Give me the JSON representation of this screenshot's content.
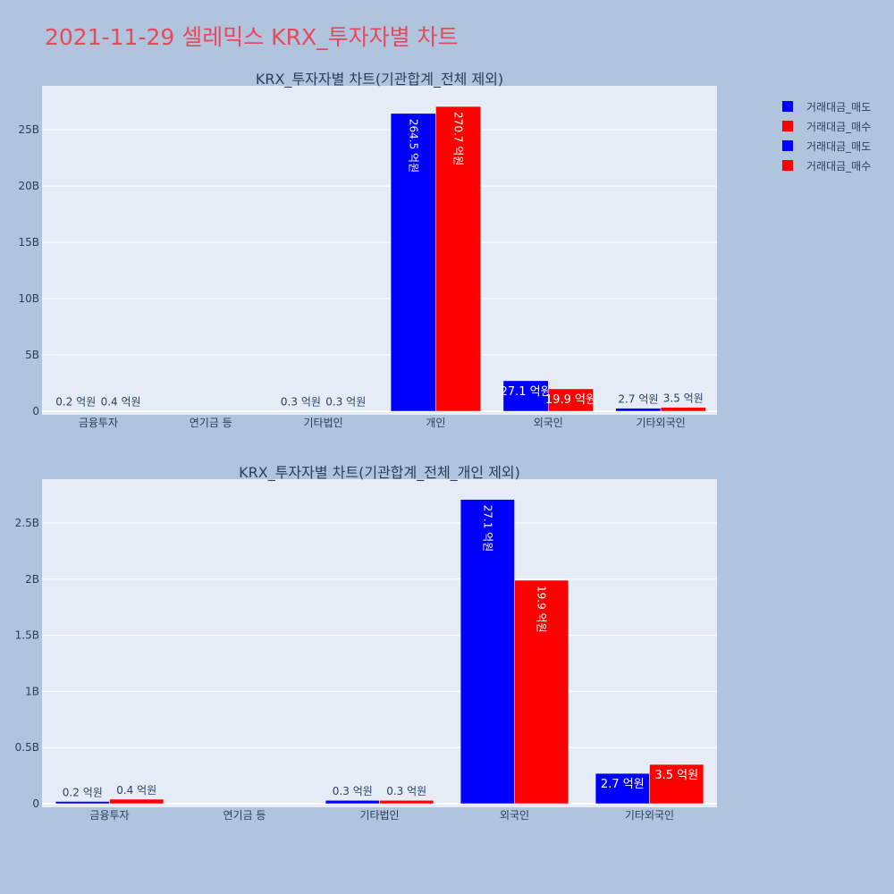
{
  "title": "2021-11-29 셀레믹스 KRX_투자자별 차트",
  "legend": [
    {
      "label": "거래대금_매도",
      "color": "#0000ff"
    },
    {
      "label": "거래대금_매수",
      "color": "#ff0000"
    },
    {
      "label": "거래대금_매도",
      "color": "#0000ff"
    },
    {
      "label": "거래대금_매수",
      "color": "#ff0000"
    }
  ],
  "chart_data": [
    {
      "type": "bar",
      "title": "KRX_투자자별 차트(기관합계_전체 제외)",
      "categories": [
        "금융투자",
        "연기금 등",
        "기타법인",
        "개인",
        "외국인",
        "기타외국인"
      ],
      "series": [
        {
          "name": "거래대금_매도",
          "color": "#0000ff",
          "values": [
            20000000,
            0,
            30000000,
            26450000000,
            2710000000,
            270000000
          ],
          "labels": [
            "0.2 억원",
            "",
            "0.3 억원",
            "264.5 억원",
            "27.1 억원",
            "2.7 억원"
          ]
        },
        {
          "name": "거래대금_매수",
          "color": "#ff0000",
          "values": [
            40000000,
            0,
            30000000,
            27070000000,
            1990000000,
            350000000
          ],
          "labels": [
            "0.4 억원",
            "",
            "0.3 억원",
            "270.7 억원",
            "19.9 억원",
            "3.5 억원"
          ]
        }
      ],
      "ylim": [
        0,
        28900000000
      ],
      "yticks": [
        {
          "v": 0,
          "label": "0"
        },
        {
          "v": 5000000000,
          "label": "5B"
        },
        {
          "v": 10000000000,
          "label": "10B"
        },
        {
          "v": 15000000000,
          "label": "15B"
        },
        {
          "v": 20000000000,
          "label": "20B"
        },
        {
          "v": 25000000000,
          "label": "25B"
        }
      ],
      "grid": true
    },
    {
      "type": "bar",
      "title": "KRX_투자자별 차트(기관합계_전체_개인 제외)",
      "categories": [
        "금융투자",
        "연기금 등",
        "기타법인",
        "외국인",
        "기타외국인"
      ],
      "series": [
        {
          "name": "거래대금_매도",
          "color": "#0000ff",
          "values": [
            20000000,
            0,
            30000000,
            2710000000,
            270000000
          ],
          "labels": [
            "0.2 억원",
            "",
            "0.3 억원",
            "27.1 억원",
            "2.7 억원"
          ]
        },
        {
          "name": "거래대금_매수",
          "color": "#ff0000",
          "values": [
            40000000,
            0,
            30000000,
            1990000000,
            350000000
          ],
          "labels": [
            "0.4 억원",
            "",
            "0.3 억원",
            "19.9 억원",
            "3.5 억원"
          ]
        }
      ],
      "ylim": [
        0,
        2890000000
      ],
      "yticks": [
        {
          "v": 0,
          "label": "0"
        },
        {
          "v": 500000000,
          "label": "0.5B"
        },
        {
          "v": 1000000000,
          "label": "1B"
        },
        {
          "v": 1500000000,
          "label": "1.5B"
        },
        {
          "v": 2000000000,
          "label": "2B"
        },
        {
          "v": 2500000000,
          "label": "2.5B"
        }
      ],
      "grid": true
    }
  ]
}
